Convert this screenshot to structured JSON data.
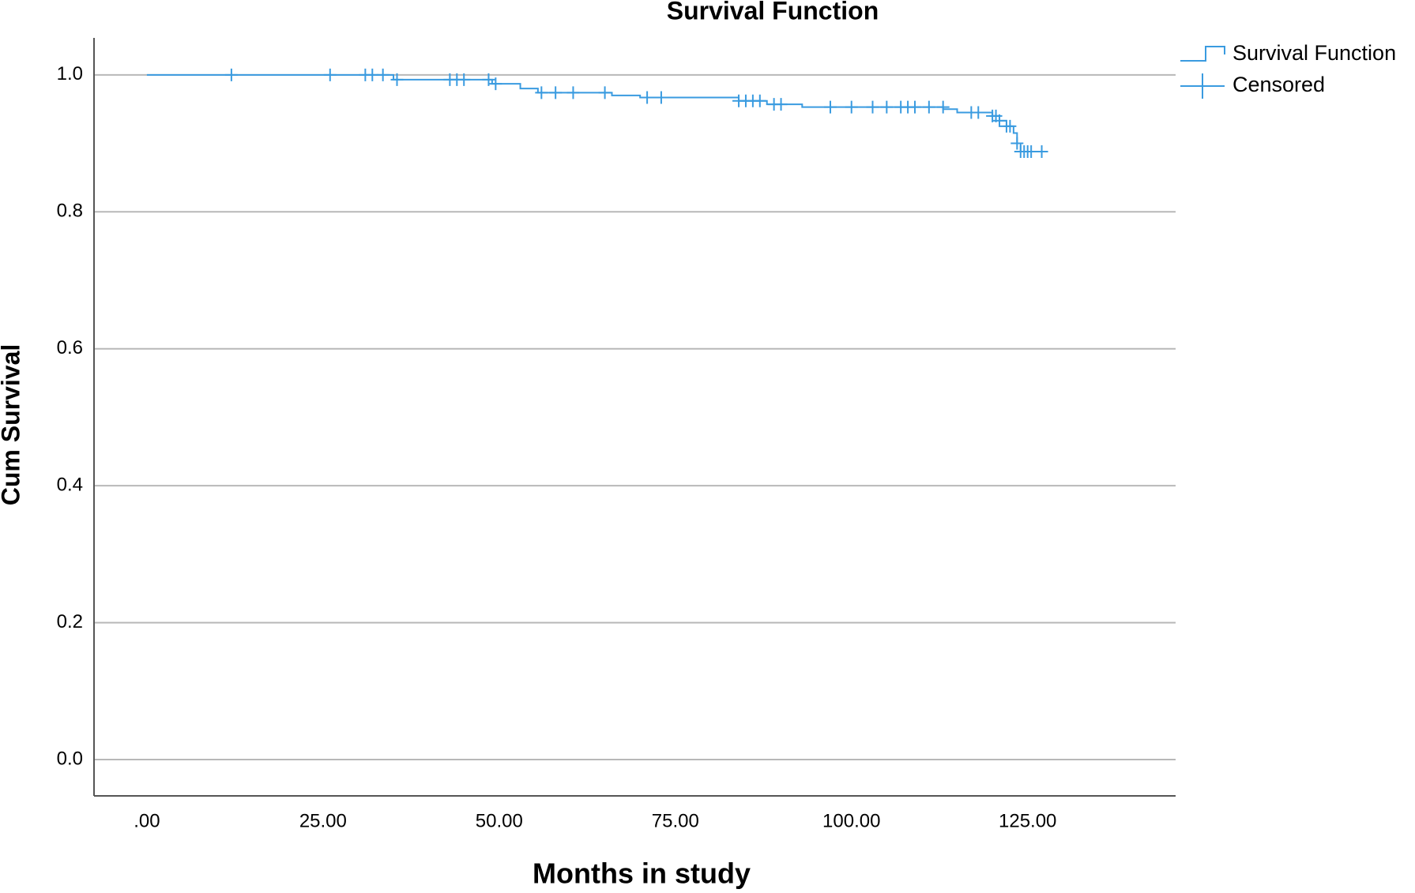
{
  "chart_data": {
    "type": "line",
    "title": "Survival Function",
    "x_label": "Months in study",
    "y_label": "Cum Survival",
    "xlim": [
      -7.5,
      146
    ],
    "ylim": [
      -0.053,
      1.054
    ],
    "xticks": [
      {
        "value": 0,
        "label": ".00"
      },
      {
        "value": 25,
        "label": "25.00"
      },
      {
        "value": 50,
        "label": "50.00"
      },
      {
        "value": 75,
        "label": "75.00"
      },
      {
        "value": 100,
        "label": "100.00"
      },
      {
        "value": 125,
        "label": "125.00"
      }
    ],
    "yticks": [
      {
        "value": 0,
        "label": "0.0"
      },
      {
        "value": 0.2,
        "label": "0.2"
      },
      {
        "value": 0.4,
        "label": "0.4"
      },
      {
        "value": 0.6,
        "label": "0.6"
      },
      {
        "value": 0.8,
        "label": "0.8"
      },
      {
        "value": 1,
        "label": "1.0"
      }
    ],
    "grid": true,
    "legend": "upper right outside",
    "series": [
      {
        "name": "Survival Function",
        "color": "#3a9be0",
        "mark": "line",
        "x": [
          0,
          35,
          35,
          49,
          49,
          53,
          53,
          55.5,
          55.5,
          66,
          66,
          70,
          70,
          84,
          84,
          88,
          88,
          93,
          93,
          113,
          113,
          115,
          115,
          120,
          120,
          121,
          121,
          122,
          122,
          123,
          123,
          123.5,
          123.5,
          124,
          124,
          127
        ],
        "y": [
          1,
          1,
          0.993,
          0.993,
          0.987,
          0.987,
          0.98,
          0.98,
          0.974,
          0.974,
          0.97,
          0.97,
          0.967,
          0.967,
          0.962,
          0.962,
          0.957,
          0.957,
          0.953,
          0.953,
          0.95,
          0.95,
          0.945,
          0.945,
          0.94,
          0.94,
          0.933,
          0.933,
          0.925,
          0.925,
          0.915,
          0.915,
          0.9,
          0.9,
          0.888,
          0.888
        ]
      },
      {
        "name": "Censored",
        "color": "#3a9be0",
        "mark": "cross",
        "x": [
          12,
          26,
          31,
          32,
          33.5,
          35.5,
          43,
          44,
          45,
          48.5,
          49.5,
          56,
          58,
          60.5,
          65,
          71,
          73,
          84,
          85,
          86,
          87,
          89,
          90,
          97,
          100,
          103,
          105,
          107,
          108,
          109,
          111,
          113,
          117,
          118,
          120,
          120.5,
          121,
          122,
          122.5,
          123.5,
          124,
          124.5,
          125,
          125.5,
          127
        ],
        "y": [
          1,
          1,
          1,
          1,
          1,
          0.993,
          0.993,
          0.993,
          0.993,
          0.993,
          0.987,
          0.974,
          0.974,
          0.974,
          0.974,
          0.967,
          0.967,
          0.962,
          0.962,
          0.962,
          0.962,
          0.957,
          0.957,
          0.953,
          0.953,
          0.953,
          0.953,
          0.953,
          0.953,
          0.953,
          0.953,
          0.953,
          0.945,
          0.945,
          0.94,
          0.94,
          0.933,
          0.925,
          0.925,
          0.9,
          0.888,
          0.888,
          0.888,
          0.888,
          0.888
        ]
      }
    ]
  }
}
